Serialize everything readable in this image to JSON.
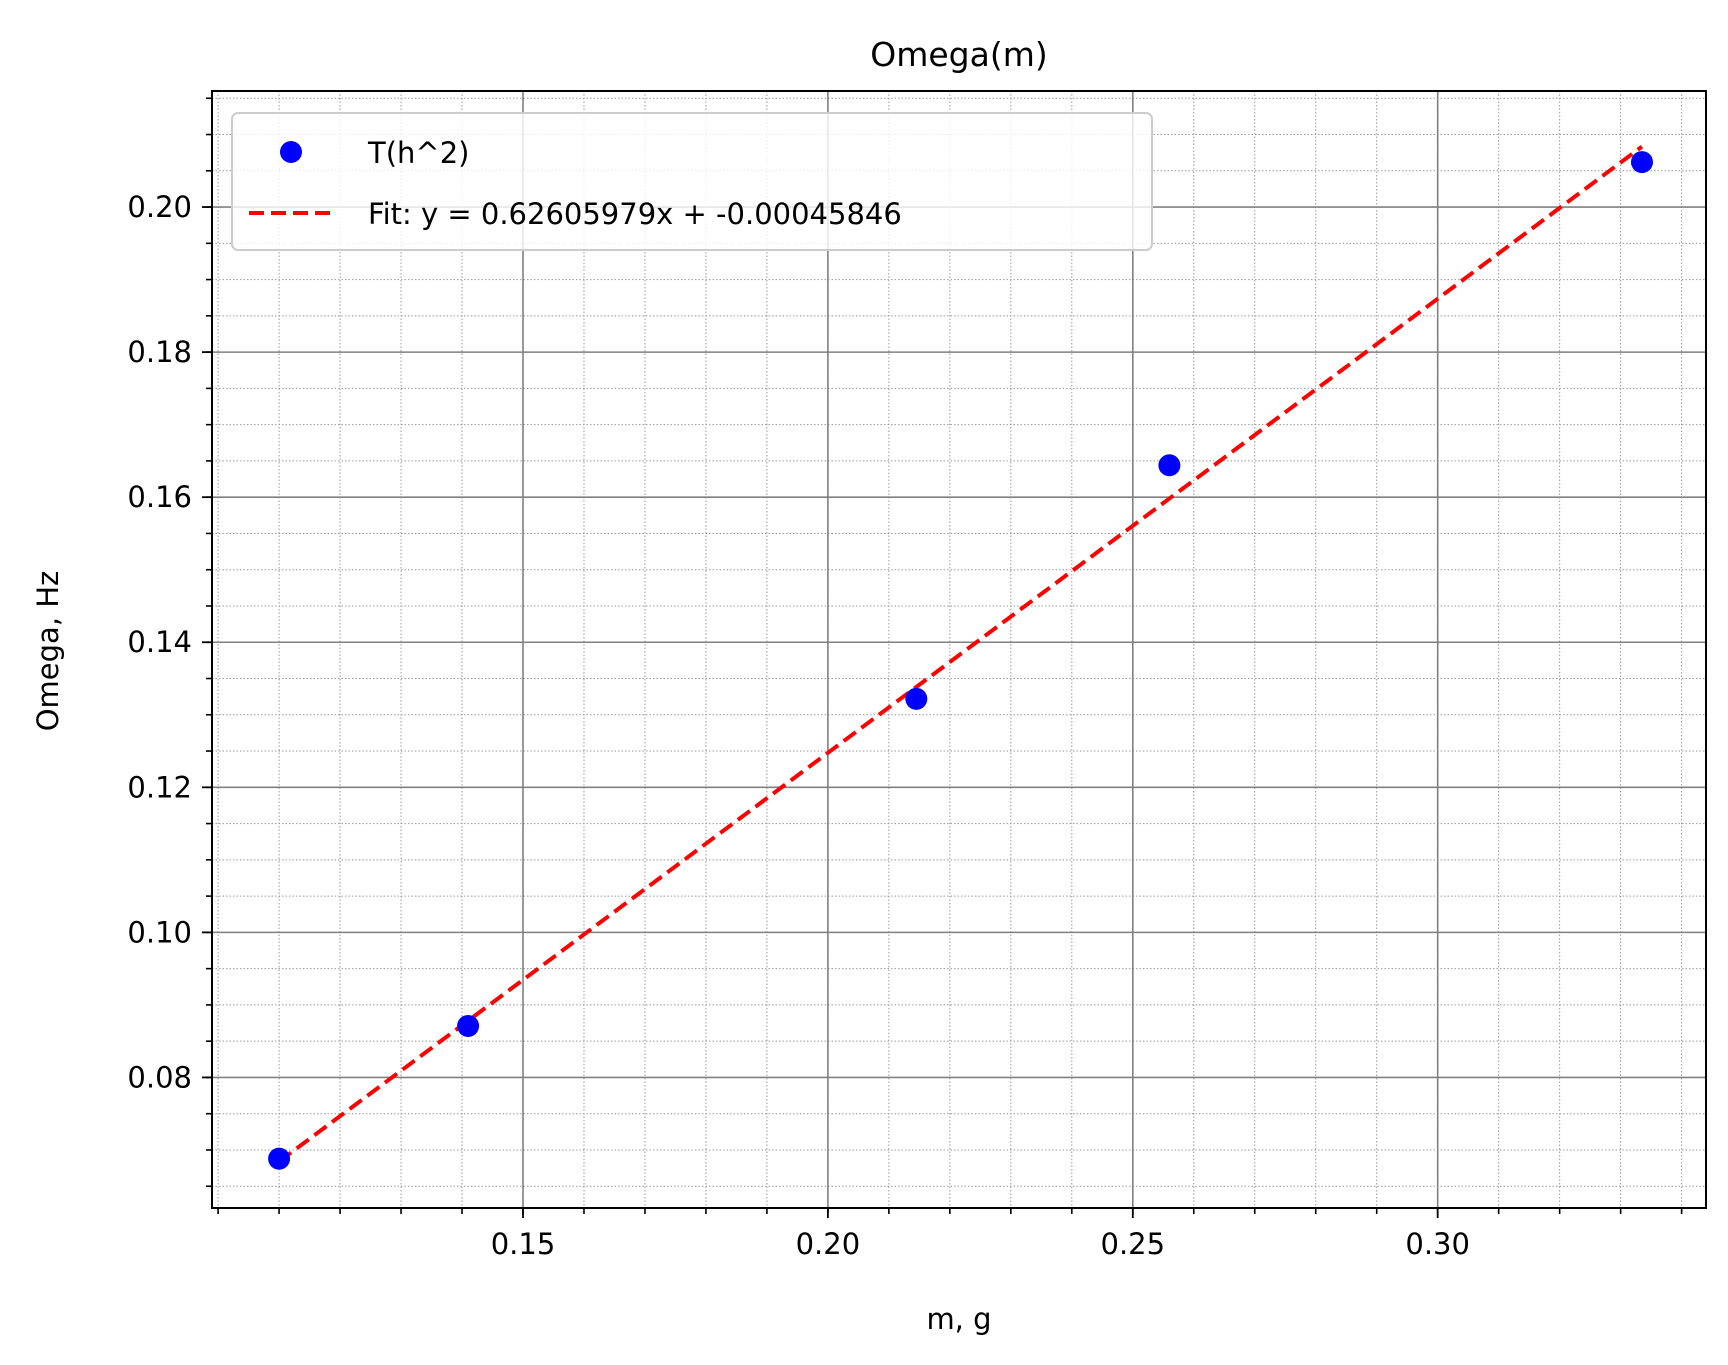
{
  "chart_data": {
    "type": "scatter",
    "title": "Omega(m)",
    "xlabel": "m, g",
    "ylabel": "Omega, Hz",
    "xlim": [
      0.099,
      0.344
    ],
    "ylim": [
      0.062,
      0.216
    ],
    "x_ticks": [
      0.15,
      0.2,
      0.25,
      0.3
    ],
    "x_tick_labels": [
      "0.15",
      "0.20",
      "0.25",
      "0.30"
    ],
    "x_minor_step": 0.01,
    "y_ticks": [
      0.08,
      0.1,
      0.12,
      0.14,
      0.16,
      0.18,
      0.2
    ],
    "y_tick_labels": [
      "0.08",
      "0.10",
      "0.12",
      "0.14",
      "0.16",
      "0.18",
      "0.20"
    ],
    "y_minor_step": 0.005,
    "grid": {
      "major": true,
      "minor": true,
      "major_color": "#808080",
      "minor_color": "#999999"
    },
    "legend_position": "upper-left",
    "series": [
      {
        "name": "T(h^2)",
        "kind": "markers",
        "color": "#0000ff",
        "x": [
          0.11,
          0.141,
          0.2145,
          0.256,
          0.3335
        ],
        "y": [
          0.0688,
          0.0871,
          0.1322,
          0.1644,
          0.2062
        ]
      },
      {
        "name": "Fit: y = 0.62605979x + -0.00045846",
        "kind": "dashed-line",
        "color": "#ff0000",
        "slope": 0.62605979,
        "intercept": -0.00045846,
        "x": [
          0.11,
          0.3335
        ]
      }
    ]
  }
}
